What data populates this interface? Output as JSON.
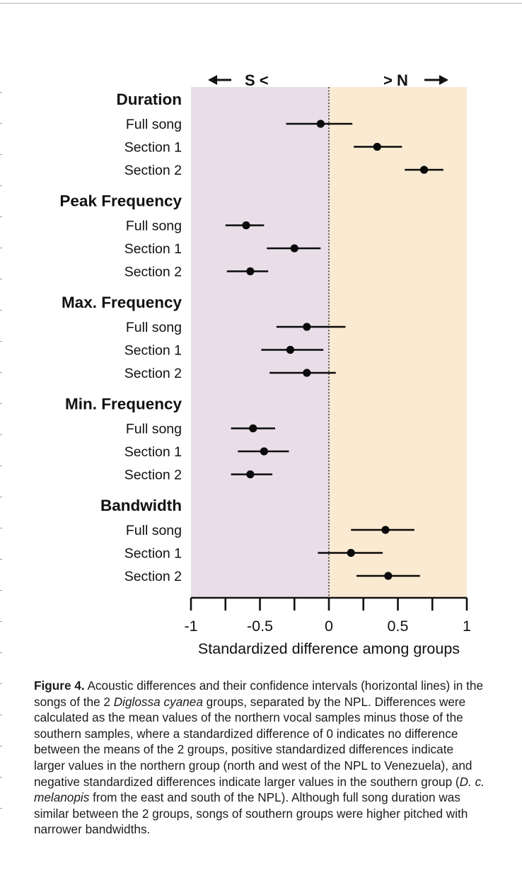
{
  "chart_data": {
    "type": "forest",
    "direction_labels": {
      "left": "S <",
      "right": "> N"
    },
    "xlabel": "Standardized difference among groups",
    "xlim": [
      -1,
      1
    ],
    "xticks": [
      -1,
      -0.75,
      -0.5,
      -0.25,
      0,
      0.25,
      0.5,
      0.75,
      1
    ],
    "xtick_labels": [
      {
        "value": -1,
        "label": "-1"
      },
      {
        "value": -0.5,
        "label": "-0.5"
      },
      {
        "value": 0,
        "label": "0"
      },
      {
        "value": 0.5,
        "label": "0.5"
      },
      {
        "value": 1,
        "label": "1"
      }
    ],
    "reference_line": 0,
    "region_colors": {
      "south": "#e9dde7",
      "north": "#faead1"
    },
    "marker_color": "#0a0a0a",
    "groups": [
      {
        "name": "Duration",
        "rows": [
          {
            "label": "Full song",
            "estimate": -0.06,
            "lower": -0.31,
            "upper": 0.17
          },
          {
            "label": "Section 1",
            "estimate": 0.35,
            "lower": 0.18,
            "upper": 0.53
          },
          {
            "label": "Section 2",
            "estimate": 0.69,
            "lower": 0.55,
            "upper": 0.83
          }
        ]
      },
      {
        "name": "Peak Frequency",
        "rows": [
          {
            "label": "Full song",
            "estimate": -0.6,
            "lower": -0.75,
            "upper": -0.47
          },
          {
            "label": "Section 1",
            "estimate": -0.25,
            "lower": -0.45,
            "upper": -0.06
          },
          {
            "label": "Section 2",
            "estimate": -0.57,
            "lower": -0.74,
            "upper": -0.44
          }
        ]
      },
      {
        "name": "Max. Frequency",
        "rows": [
          {
            "label": "Full song",
            "estimate": -0.16,
            "lower": -0.38,
            "upper": 0.12
          },
          {
            "label": "Section 1",
            "estimate": -0.28,
            "lower": -0.49,
            "upper": -0.04
          },
          {
            "label": "Section 2",
            "estimate": -0.16,
            "lower": -0.43,
            "upper": 0.05
          }
        ]
      },
      {
        "name": "Min. Frequency",
        "rows": [
          {
            "label": "Full song",
            "estimate": -0.55,
            "lower": -0.71,
            "upper": -0.39
          },
          {
            "label": "Section 1",
            "estimate": -0.47,
            "lower": -0.66,
            "upper": -0.29
          },
          {
            "label": "Section 2",
            "estimate": -0.57,
            "lower": -0.71,
            "upper": -0.41
          }
        ]
      },
      {
        "name": "Bandwidth",
        "rows": [
          {
            "label": "Full song",
            "estimate": 0.41,
            "lower": 0.16,
            "upper": 0.62
          },
          {
            "label": "Section 1",
            "estimate": 0.16,
            "lower": -0.08,
            "upper": 0.39
          },
          {
            "label": "Section 2",
            "estimate": 0.43,
            "lower": 0.2,
            "upper": 0.66
          }
        ]
      }
    ]
  },
  "caption": {
    "heading": "Figure 4.",
    "text_1": " Acoustic differences and their confidence intervals (horizontal lines) in the songs of the 2 ",
    "species": "Diglossa cyanea",
    "text_2": " groups, separated by the NPL. Differences were calculated as the mean values of the northern vocal samples minus those of the southern samples, where a standardized difference of 0 indicates no difference between the means of the 2 groups, positive standardized differences indicate larger values in the northern group (north and west of the NPL to Venezuela), and negative standardized differences indicate larger values in the southern group (",
    "subspecies": "D. c. melanopis",
    "text_3": " from the east and south of the NPL). Although full song duration was similar between the 2 groups, songs of southern groups were higher pitched with narrower bandwidths."
  }
}
